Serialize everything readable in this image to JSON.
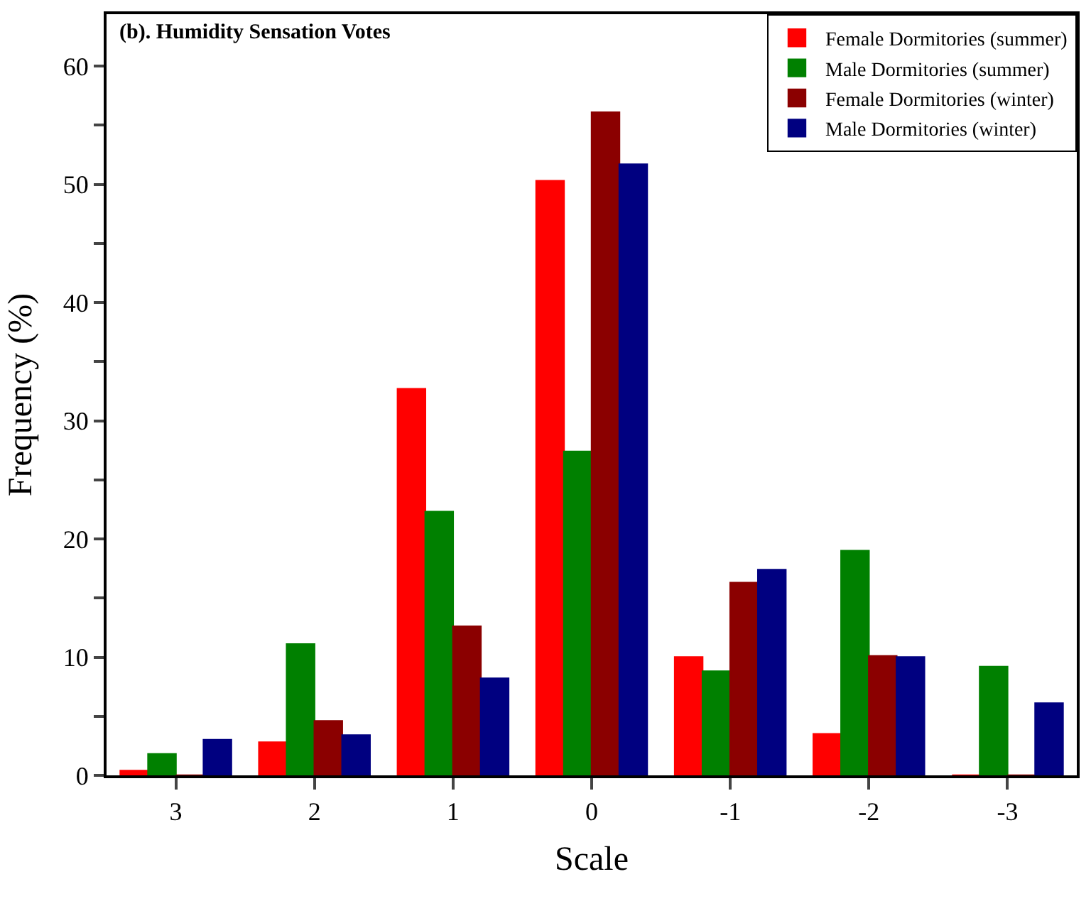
{
  "chart_data": {
    "type": "bar",
    "title": "(b). Humidity Sensation Votes",
    "xlabel": "Scale",
    "ylabel": "Frequency (%)",
    "categories": [
      "3",
      "2",
      "1",
      "0",
      "-1",
      "-2",
      "-3"
    ],
    "series": [
      {
        "name": "Female Dormitories (summer)",
        "color": "#ff0000",
        "values": [
          0.4,
          2.8,
          32.7,
          50.3,
          10.0,
          3.5,
          0
        ]
      },
      {
        "name": "Male Dormitories (summer)",
        "color": "#008000",
        "values": [
          1.8,
          11.1,
          22.3,
          27.4,
          8.8,
          19.0,
          9.2
        ]
      },
      {
        "name": "Female Dormitories (winter)",
        "color": "#8b0000",
        "values": [
          0,
          4.6,
          12.6,
          56.1,
          16.3,
          10.1,
          0
        ]
      },
      {
        "name": "Male Dormitories (winter)",
        "color": "#000080",
        "values": [
          3.0,
          3.4,
          8.2,
          51.7,
          17.4,
          10.0,
          6.1
        ]
      }
    ],
    "ylim": [
      0,
      64.4
    ],
    "yticks": [
      0,
      {
        "value": 5,
        "label": null
      },
      10,
      {
        "value": 15,
        "label": null
      },
      20,
      {
        "value": 25,
        "label": null
      },
      30,
      {
        "value": 35,
        "label": null
      },
      40,
      {
        "value": 45,
        "label": null
      },
      50,
      {
        "value": 55,
        "label": null
      },
      60
    ],
    "legend": "top right"
  }
}
